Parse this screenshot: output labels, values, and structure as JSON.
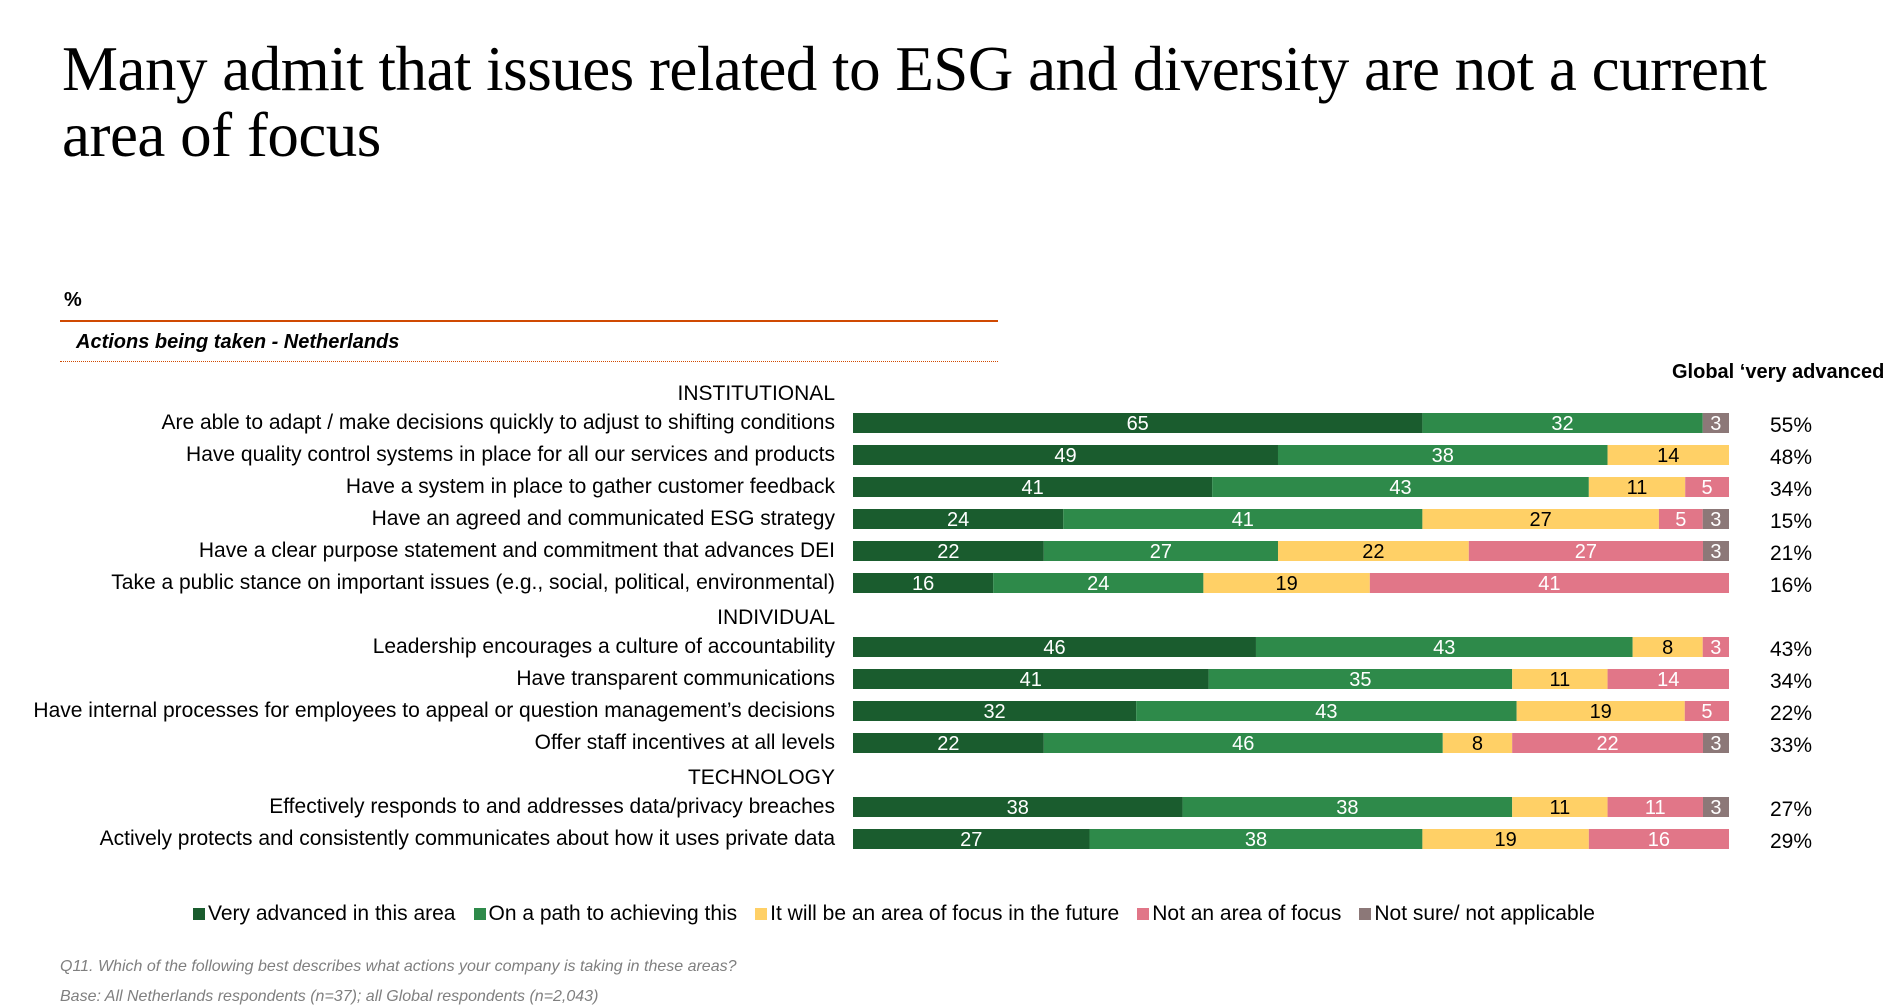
{
  "title": "Many admit that issues related to ESG and diversity are not a current area of focus",
  "unit_label": "%",
  "subtitle": "Actions being taken - Netherlands",
  "global_header": "Global ‘very advanced",
  "footnotes": {
    "question": "Q11. Which of the following best describes what actions your company is taking in these areas?",
    "base": "Base: All Netherlands respondents (n=37); all Global respondents (n=2,043)"
  },
  "chart_data": {
    "type": "bar",
    "orientation": "horizontal-stacked-100",
    "title": "Actions being taken - Netherlands",
    "xlabel": "",
    "ylabel": "%",
    "xlim": [
      0,
      100
    ],
    "grid": false,
    "legend_position": "bottom",
    "series": [
      {
        "name": "Very advanced in this area",
        "color": "#1a5c2e"
      },
      {
        "name": "On a path to achieving this",
        "color": "#2e8a4a"
      },
      {
        "name": "It will be an area of focus in the future",
        "color": "#ffd066"
      },
      {
        "name": "Not an area of focus",
        "color": "#e17688"
      },
      {
        "name": "Not sure/ not applicable",
        "color": "#8c7878"
      }
    ],
    "groups": [
      {
        "name": "INSTITUTIONAL",
        "rows": [
          {
            "label": "Are able to adapt / make decisions quickly to adjust to shifting conditions",
            "values": [
              65,
              32,
              0,
              0,
              3
            ],
            "global": "55%"
          },
          {
            "label": "Have quality control systems in place for all our services and products",
            "values": [
              49,
              38,
              14,
              0,
              0
            ],
            "global": "48%"
          },
          {
            "label": "Have a system in place to gather customer feedback",
            "values": [
              41,
              43,
              11,
              5,
              0
            ],
            "global": "34%"
          },
          {
            "label": "Have an agreed and communicated ESG strategy",
            "values": [
              24,
              41,
              27,
              5,
              3
            ],
            "global": "15%"
          },
          {
            "label": "Have a clear purpose statement and commitment that advances DEI",
            "values": [
              22,
              27,
              22,
              27,
              3
            ],
            "global": "21%"
          },
          {
            "label": "Take a public stance on important issues (e.g., social, political, environmental)",
            "values": [
              16,
              24,
              19,
              41,
              0
            ],
            "global": "16%"
          }
        ]
      },
      {
        "name": "INDIVIDUAL",
        "rows": [
          {
            "label": "Leadership encourages a culture of accountability",
            "values": [
              46,
              43,
              8,
              3,
              0
            ],
            "global": "43%"
          },
          {
            "label": "Have transparent communications",
            "values": [
              41,
              35,
              11,
              14,
              0
            ],
            "global": "34%"
          },
          {
            "label": "Have internal processes for employees to appeal or question management’s decisions",
            "values": [
              32,
              43,
              19,
              5,
              0
            ],
            "global": "22%"
          },
          {
            "label": "Offer staff incentives at all levels",
            "values": [
              22,
              46,
              8,
              22,
              3
            ],
            "global": "33%"
          }
        ]
      },
      {
        "name": "TECHNOLOGY",
        "rows": [
          {
            "label": "Effectively responds to and addresses data/privacy breaches",
            "values": [
              38,
              38,
              11,
              11,
              3
            ],
            "global": "27%"
          },
          {
            "label": "Actively protects and consistently communicates about how it uses private data",
            "values": [
              27,
              38,
              19,
              16,
              0
            ],
            "global": "29%"
          }
        ]
      }
    ]
  }
}
